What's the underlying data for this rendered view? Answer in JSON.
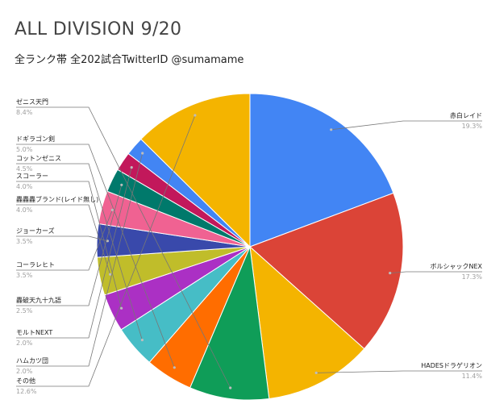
{
  "chart_data": {
    "type": "pie",
    "title": "ALL DIVISION 9/20",
    "subtitle": "全ランク帯 全202試合TwitterID @sumamame",
    "slices": [
      {
        "label": "赤白レイド",
        "value": 19.3,
        "pct": "19.3%",
        "color": "#4285f4"
      },
      {
        "label": "ボルシャックNEX",
        "value": 17.3,
        "pct": "17.3%",
        "color": "#db4437"
      },
      {
        "label": "HADESドラゲリオン",
        "value": 11.4,
        "pct": "11.4%",
        "color": "#f4b400"
      },
      {
        "label": "ゼニス天門",
        "value": 8.4,
        "pct": "8.4%",
        "color": "#0f9d58"
      },
      {
        "label": "ドギラゴン剣",
        "value": 5.0,
        "pct": "5.0%",
        "color": "#ff6d00"
      },
      {
        "label": "コットンゼニス",
        "value": 4.5,
        "pct": "4.5%",
        "color": "#46bdc6"
      },
      {
        "label": "スコーラー",
        "value": 4.0,
        "pct": "4.0%",
        "color": "#ab30c4"
      },
      {
        "label": "轟轟轟ブランド(レイド無し)",
        "value": 4.0,
        "pct": "4.0%",
        "color": "#c0bd2a"
      },
      {
        "label": "ジョーカーズ",
        "value": 3.5,
        "pct": "3.5%",
        "color": "#3949ab"
      },
      {
        "label": "コーラレヒト",
        "value": 3.5,
        "pct": "3.5%",
        "color": "#f06292"
      },
      {
        "label": "轟破天九十九語",
        "value": 2.5,
        "pct": "2.5%",
        "color": "#00796b"
      },
      {
        "label": "モルトNEXT",
        "value": 2.0,
        "pct": "2.0%",
        "color": "#c2185b"
      },
      {
        "label": "ハムカツ団",
        "value": 2.0,
        "pct": "2.0%",
        "color": "#4285f4"
      },
      {
        "label": "その他",
        "value": 12.6,
        "pct": "12.6%",
        "color": "#f4b400"
      }
    ]
  }
}
